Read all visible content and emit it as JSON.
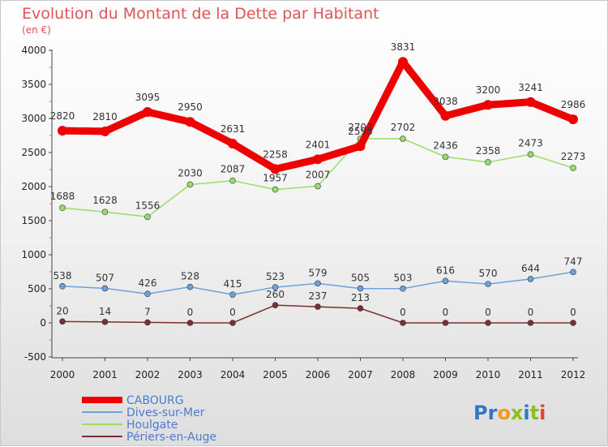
{
  "colors": {
    "cabourg": "#ee0000",
    "dives": "#6ea2d6",
    "houlgate": "#99dd66",
    "periers": "#7a3030"
  },
  "chart_data": {
    "type": "line",
    "title": "Evolution du Montant de la Dette par Habitant",
    "subtitle": "(en €)",
    "xlabel": "",
    "ylabel": "",
    "ylim": [
      -500,
      4000
    ],
    "yticks": [
      -500,
      0,
      500,
      1000,
      1500,
      2000,
      2500,
      3000,
      3500,
      4000
    ],
    "x": [
      "2000",
      "2001",
      "2002",
      "2003",
      "2004",
      "2005",
      "2006",
      "2007",
      "2008",
      "2009",
      "2010",
      "2011",
      "2012"
    ],
    "grid": false,
    "legend": "bottom-left",
    "series": [
      {
        "name": "CABOURG",
        "key": "cabourg",
        "values": [
          2820,
          2810,
          3095,
          2950,
          2631,
          2258,
          2401,
          2593,
          3831,
          3038,
          3200,
          3241,
          2986
        ]
      },
      {
        "name": "Dives-sur-Mer",
        "key": "dives",
        "values": [
          538,
          507,
          426,
          528,
          415,
          523,
          579,
          505,
          503,
          616,
          570,
          644,
          747
        ]
      },
      {
        "name": "Houlgate",
        "key": "houlgate",
        "values": [
          1688,
          1628,
          1556,
          2030,
          2087,
          1957,
          2007,
          2702,
          2702,
          2436,
          2358,
          2473,
          2273
        ]
      },
      {
        "name": "Périers-en-Auge",
        "key": "periers",
        "values": [
          20,
          14,
          7,
          0,
          0,
          260,
          237,
          213,
          0,
          0,
          0,
          0,
          0
        ]
      }
    ]
  },
  "logo": {
    "text": "Proxiti"
  }
}
